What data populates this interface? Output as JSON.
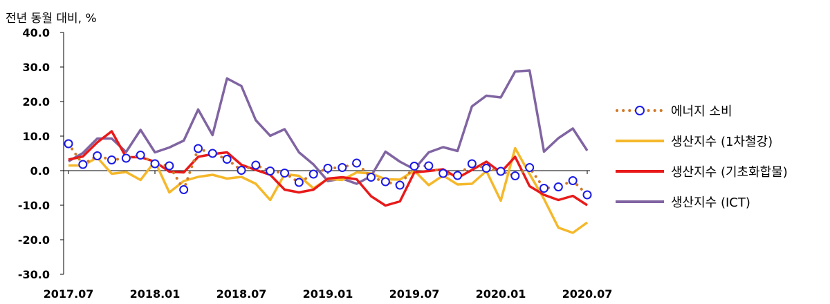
{
  "chart_data": {
    "type": "line",
    "unit_label": "전년 동월 대비, %",
    "x": [
      "2017.07",
      "2017.08",
      "2017.09",
      "2017.10",
      "2017.11",
      "2017.12",
      "2018.01",
      "2018.02",
      "2018.03",
      "2018.04",
      "2018.05",
      "2018.06",
      "2018.07",
      "2018.08",
      "2018.09",
      "2018.10",
      "2018.11",
      "2018.12",
      "2019.01",
      "2019.02",
      "2019.03",
      "2019.04",
      "2019.05",
      "2019.06",
      "2019.07",
      "2019.08",
      "2019.09",
      "2019.10",
      "2019.11",
      "2019.12",
      "2020.01",
      "2020.02",
      "2020.03",
      "2020.04",
      "2020.05",
      "2020.06",
      "2020.07"
    ],
    "x_tick_labels": [
      "2017.07",
      "2018.01",
      "2018.07",
      "2019.01",
      "2019.07",
      "2020.01",
      "2020.07"
    ],
    "ylim": [
      -30,
      40
    ],
    "y_ticks": [
      "40.0",
      "30.0",
      "20.0",
      "10.0",
      "0.0",
      "-10.0",
      "-20.0",
      "-30.0"
    ],
    "y_tick_values": [
      40,
      30,
      20,
      10,
      0,
      -10,
      -20,
      -30
    ],
    "legend_position": "right",
    "series": [
      {
        "name": "에너지 소비",
        "color": "#d07a2a",
        "marker": "#1a1ae6",
        "style": "dotted-markers",
        "values": [
          7.8,
          1.8,
          4.3,
          3.1,
          3.6,
          4.5,
          2.0,
          1.4,
          -5.5,
          6.4,
          5.0,
          3.3,
          0.1,
          1.6,
          -0.1,
          -0.7,
          -3.4,
          -1.0,
          0.7,
          0.9,
          2.2,
          -1.9,
          -3.2,
          -4.2,
          1.3,
          1.4,
          -0.8,
          -1.4,
          2.0,
          0.7,
          -0.2,
          -1.5,
          0.9,
          -5.1,
          -4.7,
          -2.9,
          -7.0
        ]
      },
      {
        "name": "생산지수 (1차철강)",
        "color": "#f5b82a",
        "style": "line",
        "values": [
          1.5,
          1.5,
          3.8,
          -0.9,
          -0.4,
          -2.7,
          2.7,
          -6.3,
          -3.0,
          -1.8,
          -1.2,
          -2.3,
          -1.8,
          -3.8,
          -8.5,
          -1.0,
          -1.5,
          -5.1,
          -2.4,
          -2.7,
          -0.5,
          -0.8,
          -2.5,
          -2.6,
          0.0,
          -4.2,
          -1.4,
          -4.0,
          -3.8,
          -0.1,
          -8.7,
          6.5,
          -1.0,
          -8.2,
          -16.5,
          -18.0,
          -15.0
        ]
      },
      {
        "name": "생산지수 (기초화합물)",
        "color": "#e81a1a",
        "style": "line",
        "values": [
          3.2,
          4.1,
          8.2,
          11.4,
          3.9,
          3.9,
          2.6,
          -0.3,
          -0.5,
          4.0,
          4.8,
          5.3,
          1.7,
          0.2,
          -1.2,
          -5.5,
          -6.3,
          -5.5,
          -2.3,
          -1.9,
          -2.5,
          -7.4,
          -10.1,
          -8.9,
          -0.5,
          -0.1,
          0.4,
          -2.1,
          0.2,
          2.6,
          -0.5,
          4.0,
          -4.5,
          -7.0,
          -8.5,
          -7.3,
          -10.0
        ]
      },
      {
        "name": "생산지수 (ICT)",
        "color": "#8064a2",
        "style": "line",
        "values": [
          2.7,
          5.1,
          9.3,
          9.3,
          5.4,
          11.8,
          5.3,
          6.7,
          8.7,
          17.7,
          10.3,
          26.7,
          24.5,
          14.6,
          10.1,
          12.0,
          5.3,
          1.8,
          -3.0,
          -2.3,
          -3.8,
          -1.6,
          5.5,
          2.6,
          0.4,
          5.3,
          6.8,
          5.7,
          18.6,
          21.7,
          21.2,
          28.7,
          29.0,
          5.5,
          9.4,
          12.2,
          5.8
        ]
      }
    ]
  }
}
